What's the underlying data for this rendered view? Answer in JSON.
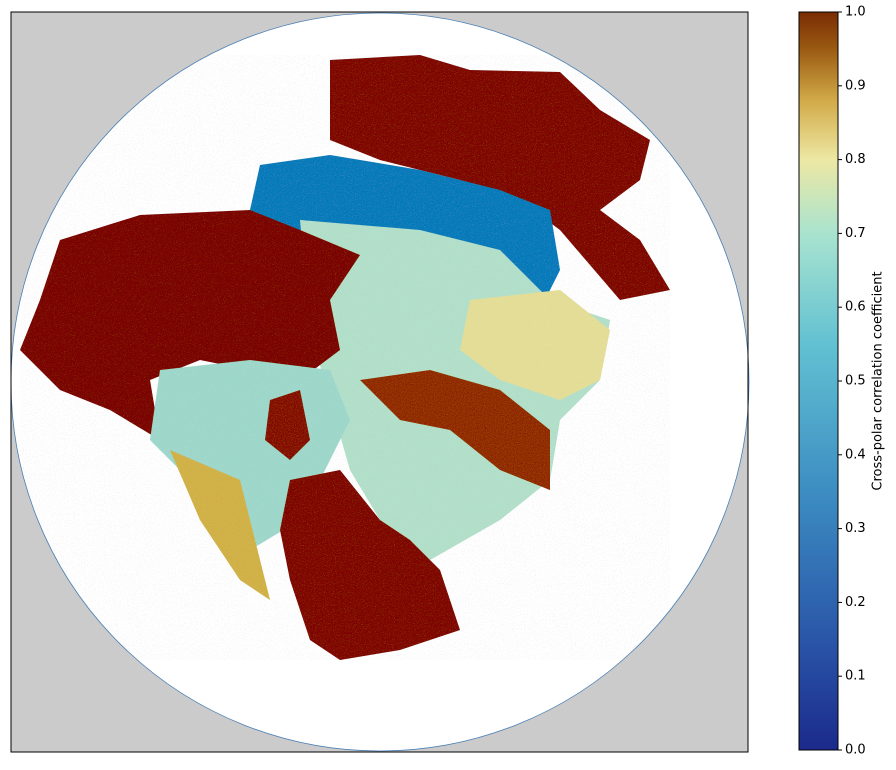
{
  "chart_data": {
    "type": "heatmap",
    "colorbar": {
      "label": "Cross-polar correlation coefficient",
      "lim": [
        0,
        1
      ],
      "ticks": [
        {
          "value": 0,
          "label": "0.0"
        },
        0.1,
        0.2,
        0.3,
        0.4,
        0.5,
        0.6,
        0.7,
        0.8,
        0.9,
        {
          "value": 1,
          "label": "1.0"
        }
      ]
    }
  }
}
